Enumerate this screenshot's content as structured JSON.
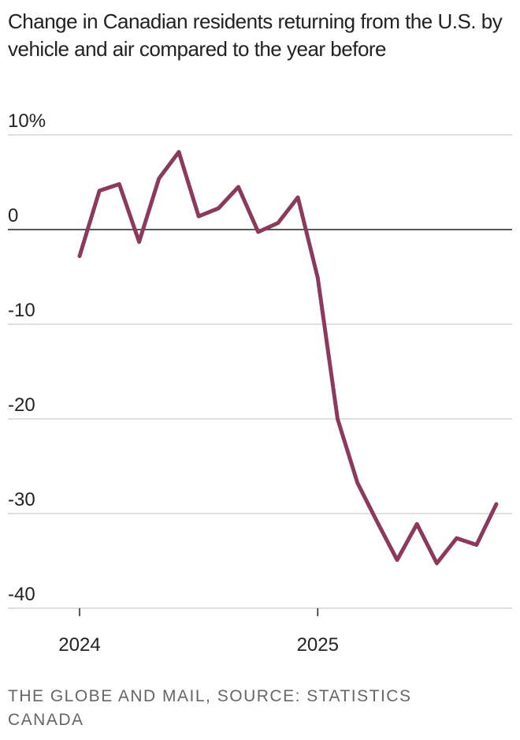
{
  "chart_data": {
    "type": "line",
    "title": "Change in Canadian residents returning from the U.S. by vehicle and air compared to the year before",
    "source": "THE GLOBE AND MAIL, SOURCE: STATISTICS CANADA",
    "categories": [
      "2024",
      null,
      null,
      null,
      null,
      null,
      null,
      null,
      null,
      null,
      null,
      null,
      "2025",
      null,
      null,
      null,
      null,
      null,
      null,
      null,
      null,
      null
    ],
    "series": [
      {
        "color": "#8b3a5e",
        "values": [
          -2.8,
          4.1,
          4.8,
          -1.3,
          5.4,
          8.2,
          1.4,
          2.25,
          4.5,
          -0.25,
          0.7,
          3.4,
          -5.1,
          -20,
          -26.75,
          -30.9,
          -34.9,
          -31.1,
          -35.25,
          -32.6,
          -33.3,
          -29
        ]
      }
    ],
    "ylim": [
      -40,
      10
    ],
    "yticks": [
      {
        "value": 10,
        "label": "10%"
      },
      0,
      -10,
      -20,
      -30,
      -40
    ],
    "grid": true
  }
}
